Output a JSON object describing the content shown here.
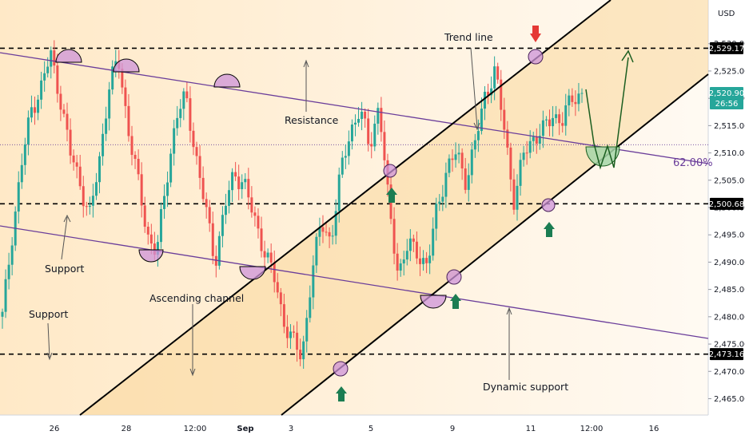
{
  "currency": "USD",
  "countdown": "26:56",
  "fib_label": "62.00%",
  "annotations": {
    "trend_line": "Trend line",
    "resistance": "Resistance",
    "support_1": "Support",
    "support_2": "Support",
    "ascending_channel": "Ascending channel",
    "dynamic_support": "Dynamic support"
  },
  "colors": {
    "bull": "#26a69a",
    "bear": "#ef5350",
    "channel_line": "#000000",
    "purple_line": "#6a3d9a",
    "circle_fill": "#ce93d8",
    "projection_fill": "#a5d6a7",
    "arrow_up": "#1b7d52",
    "arrow_down": "#e53935",
    "current_price_tag": "#26a69a"
  },
  "chart_data": {
    "type": "candlestick",
    "instrument_quote": "USD",
    "ylim": [
      2462,
      2538
    ],
    "y_ticks": [
      2465,
      2470,
      2475,
      2480,
      2485,
      2490,
      2495,
      2500,
      2505,
      2510,
      2515,
      2520,
      2525,
      2530
    ],
    "x_tick_labels": [
      "26",
      "28",
      "12:00",
      "Sep",
      "3",
      "5",
      "9",
      "11",
      "12:00",
      "16"
    ],
    "horizontal_levels": [
      {
        "value": 2529.17,
        "label": "2,529.17",
        "style": "dashed"
      },
      {
        "value": 2500.68,
        "label": "2,500.68",
        "style": "dashed"
      },
      {
        "value": 2473.16,
        "label": "2,473.16",
        "style": "dashed"
      }
    ],
    "current_price": {
      "value": 2520.9,
      "label": "2,520.90"
    },
    "reference_level": {
      "value": 2511.5,
      "style": "dotted"
    },
    "fib_level": {
      "value": 2508.5,
      "label": "62.00%"
    },
    "close_series": [
      2480,
      2495,
      2508,
      2518,
      2522,
      2528,
      2520,
      2510,
      2505,
      2498,
      2508,
      2522,
      2527,
      2515,
      2505,
      2495,
      2492,
      2505,
      2517,
      2520,
      2510,
      2500,
      2490,
      2500,
      2506,
      2505,
      2498,
      2493,
      2488,
      2480,
      2476,
      2472,
      2488,
      2497,
      2494,
      2506,
      2514,
      2518,
      2511,
      2519,
      2500,
      2488,
      2493,
      2492,
      2489,
      2500,
      2507,
      2510,
      2505,
      2512,
      2521,
      2525,
      2514,
      2501,
      2510,
      2513,
      2514,
      2517,
      2516,
      2520,
      2521
    ]
  }
}
